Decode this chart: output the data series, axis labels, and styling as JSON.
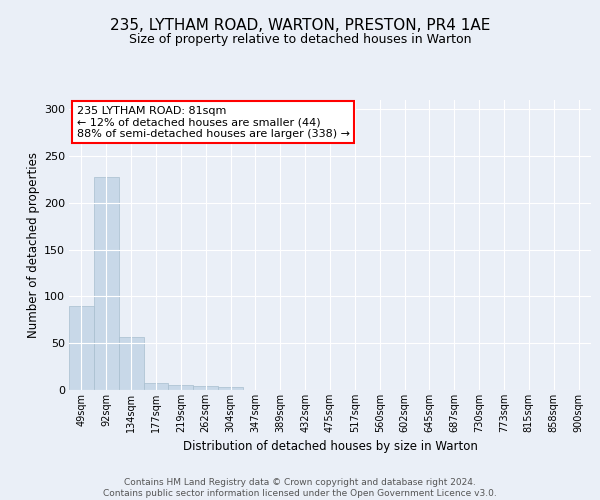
{
  "title1": "235, LYTHAM ROAD, WARTON, PRESTON, PR4 1AE",
  "title2": "Size of property relative to detached houses in Warton",
  "xlabel": "Distribution of detached houses by size in Warton",
  "ylabel": "Number of detached properties",
  "categories": [
    "49sqm",
    "92sqm",
    "134sqm",
    "177sqm",
    "219sqm",
    "262sqm",
    "304sqm",
    "347sqm",
    "389sqm",
    "432sqm",
    "475sqm",
    "517sqm",
    "560sqm",
    "602sqm",
    "645sqm",
    "687sqm",
    "730sqm",
    "773sqm",
    "815sqm",
    "858sqm",
    "900sqm"
  ],
  "values": [
    90,
    228,
    57,
    7,
    5,
    4,
    3,
    0,
    0,
    0,
    0,
    0,
    0,
    0,
    0,
    0,
    0,
    0,
    0,
    0,
    0
  ],
  "bar_color": "#c8d8e8",
  "bar_edge_color": "#a8bece",
  "annotation_text": "235 LYTHAM ROAD: 81sqm\n← 12% of detached houses are smaller (44)\n88% of semi-detached houses are larger (338) →",
  "annotation_box_color": "white",
  "annotation_box_edge": "red",
  "ylim": [
    0,
    310
  ],
  "yticks": [
    0,
    50,
    100,
    150,
    200,
    250,
    300
  ],
  "footer": "Contains HM Land Registry data © Crown copyright and database right 2024.\nContains public sector information licensed under the Open Government Licence v3.0.",
  "bg_color": "#eaeff7",
  "plot_bg_color": "#eaeff7",
  "grid_color": "white",
  "title1_fontsize": 11,
  "title2_fontsize": 9,
  "ylabel_fontsize": 8.5,
  "xlabel_fontsize": 8.5,
  "footer_fontsize": 6.5
}
